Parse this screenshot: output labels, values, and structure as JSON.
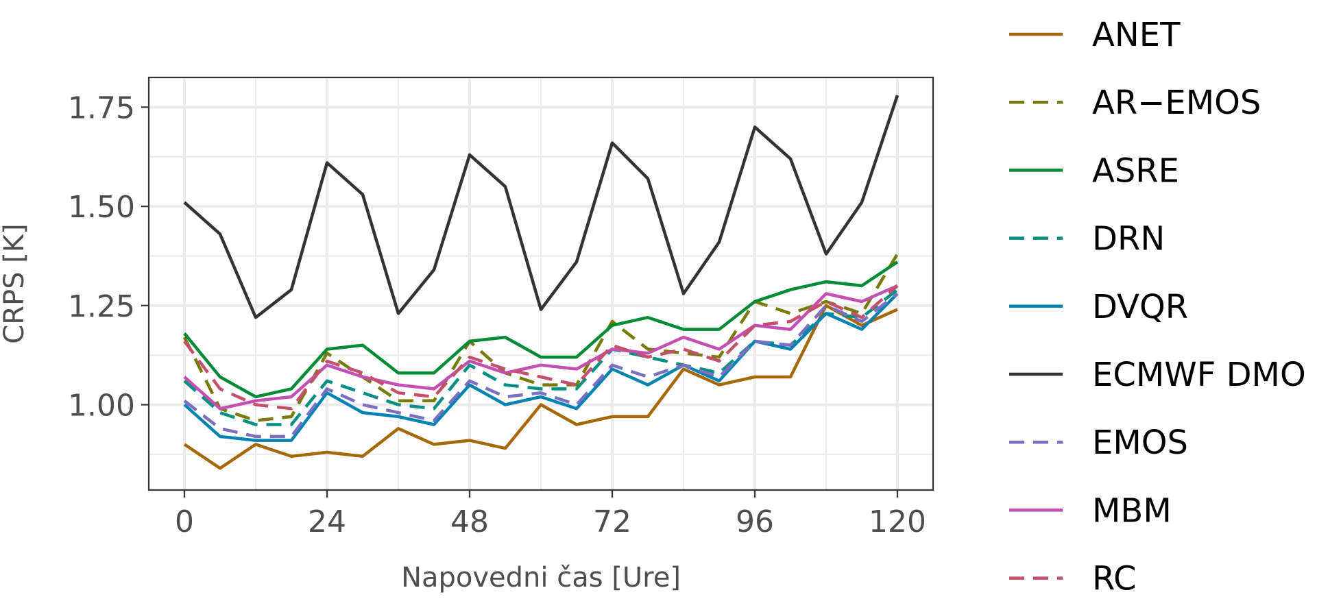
{
  "chart_data": {
    "type": "line",
    "title": "",
    "xlabel": "Napovedni čas [Ure]",
    "ylabel": "CRPS [K]",
    "x": [
      0,
      6,
      12,
      18,
      24,
      30,
      36,
      42,
      48,
      54,
      60,
      66,
      72,
      78,
      84,
      90,
      96,
      102,
      108,
      114,
      120
    ],
    "xlim": [
      -6,
      126
    ],
    "ylim": [
      0.785,
      1.825
    ],
    "xticks": [
      "0",
      "24",
      "48",
      "72",
      "96",
      "120"
    ],
    "yticks": [
      "1.00",
      "1.25",
      "1.50",
      "1.75"
    ],
    "grid": true,
    "legend_position": "right",
    "series": [
      {
        "name": "ANET",
        "color": "#a6690a",
        "dash": "solid",
        "values": [
          0.9,
          0.84,
          0.9,
          0.87,
          0.88,
          0.87,
          0.94,
          0.9,
          0.91,
          0.89,
          1.0,
          0.95,
          0.97,
          0.97,
          1.09,
          1.05,
          1.07,
          1.07,
          1.25,
          1.2,
          1.24
        ]
      },
      {
        "name": "AR−EMOS",
        "color": "#7a7a0a",
        "dash": "dashed",
        "values": [
          1.17,
          0.99,
          0.96,
          0.97,
          1.13,
          1.07,
          1.01,
          1.01,
          1.16,
          1.08,
          1.05,
          1.05,
          1.21,
          1.14,
          1.13,
          1.12,
          1.26,
          1.23,
          1.26,
          1.23,
          1.38
        ]
      },
      {
        "name": "ASRE",
        "color": "#008b34",
        "dash": "solid",
        "values": [
          1.18,
          1.07,
          1.02,
          1.04,
          1.14,
          1.15,
          1.08,
          1.08,
          1.16,
          1.17,
          1.12,
          1.12,
          1.2,
          1.22,
          1.19,
          1.19,
          1.26,
          1.29,
          1.31,
          1.3,
          1.36
        ]
      },
      {
        "name": "DRN",
        "color": "#009080",
        "dash": "dashed",
        "values": [
          1.06,
          0.98,
          0.95,
          0.95,
          1.06,
          1.03,
          1.0,
          0.99,
          1.1,
          1.05,
          1.04,
          1.04,
          1.14,
          1.12,
          1.1,
          1.08,
          1.16,
          1.15,
          1.23,
          1.22,
          1.29
        ]
      },
      {
        "name": "DVQR",
        "color": "#0083b0",
        "dash": "solid",
        "values": [
          1.0,
          0.92,
          0.91,
          0.91,
          1.03,
          0.98,
          0.97,
          0.95,
          1.05,
          1.0,
          1.02,
          0.99,
          1.09,
          1.05,
          1.1,
          1.06,
          1.16,
          1.14,
          1.23,
          1.19,
          1.28
        ]
      },
      {
        "name": "ECMWF DMO",
        "color": "#333333",
        "dash": "solid",
        "values": [
          1.51,
          1.43,
          1.22,
          1.29,
          1.61,
          1.53,
          1.23,
          1.34,
          1.63,
          1.55,
          1.24,
          1.36,
          1.66,
          1.57,
          1.28,
          1.41,
          1.7,
          1.62,
          1.38,
          1.51,
          1.78
        ]
      },
      {
        "name": "EMOS",
        "color": "#7a6fc3",
        "dash": "dashed",
        "values": [
          1.01,
          0.94,
          0.92,
          0.92,
          1.04,
          1.0,
          0.98,
          0.96,
          1.06,
          1.02,
          1.03,
          1.0,
          1.1,
          1.07,
          1.1,
          1.07,
          1.16,
          1.15,
          1.25,
          1.21,
          1.28
        ]
      },
      {
        "name": "MBM",
        "color": "#c44fb3",
        "dash": "solid",
        "values": [
          1.07,
          0.99,
          1.01,
          1.02,
          1.1,
          1.07,
          1.05,
          1.04,
          1.11,
          1.08,
          1.1,
          1.09,
          1.14,
          1.13,
          1.17,
          1.14,
          1.2,
          1.19,
          1.28,
          1.26,
          1.3
        ]
      },
      {
        "name": "RC",
        "color": "#c4506e",
        "dash": "dashed",
        "values": [
          1.16,
          1.04,
          1.0,
          0.99,
          1.11,
          1.08,
          1.03,
          1.02,
          1.12,
          1.09,
          1.07,
          1.05,
          1.15,
          1.12,
          1.14,
          1.11,
          1.2,
          1.21,
          1.26,
          1.22,
          1.3
        ]
      }
    ]
  }
}
